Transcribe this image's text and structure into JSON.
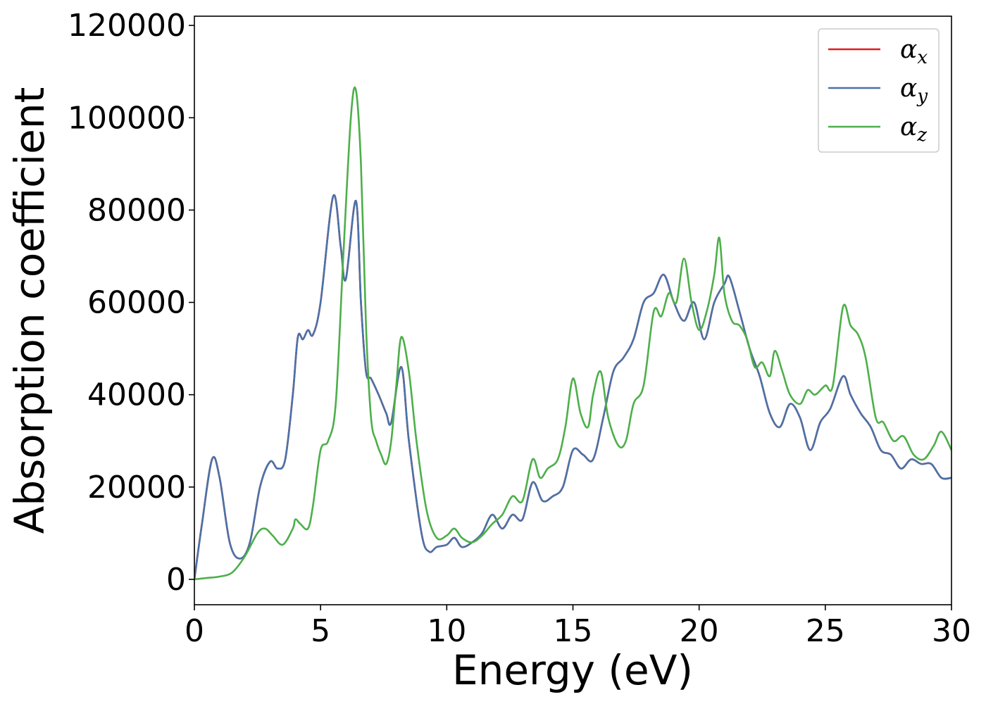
{
  "chart_data": {
    "type": "line",
    "xlabel": "Energy (eV)",
    "ylabel": "Absorption coefficient",
    "xlim": [
      0,
      30
    ],
    "ylim": [
      -5500,
      122000
    ],
    "xticks": [
      0,
      5,
      10,
      15,
      20,
      25,
      30
    ],
    "xtick_labels": [
      "0",
      "5",
      "10",
      "15",
      "20",
      "25",
      "30"
    ],
    "yticks": [
      0,
      20000,
      40000,
      60000,
      80000,
      100000,
      120000
    ],
    "ytick_labels": [
      "0",
      "20000",
      "40000",
      "60000",
      "80000",
      "100000",
      "120000"
    ],
    "grid": false,
    "legend_position": "top-right",
    "series": [
      {
        "name": "α_x",
        "symbol": "α",
        "subscript": "x",
        "color": "#e41a1c",
        "x": [
          0,
          0.3,
          0.7,
          1.0,
          1.4,
          1.8,
          2.2,
          2.6,
          3.0,
          3.3,
          3.6,
          3.9,
          4.1,
          4.3,
          4.5,
          4.7,
          5.0,
          5.5,
          5.8,
          6.0,
          6.4,
          6.6,
          6.8,
          7.0,
          7.3,
          7.6,
          7.8,
          8.2,
          8.5,
          9.0,
          9.3,
          9.6,
          10.0,
          10.3,
          10.6,
          11.0,
          11.4,
          11.8,
          12.2,
          12.6,
          13.0,
          13.4,
          13.8,
          14.2,
          14.6,
          15.0,
          15.4,
          15.8,
          16.2,
          16.6,
          17.0,
          17.4,
          17.8,
          18.2,
          18.6,
          19.0,
          19.4,
          19.8,
          20.2,
          20.6,
          21.0,
          21.2,
          21.6,
          22.0,
          22.4,
          22.8,
          23.2,
          23.6,
          24.0,
          24.4,
          24.8,
          25.2,
          25.7,
          26.0,
          26.4,
          26.8,
          27.2,
          27.6,
          28.0,
          28.4,
          28.8,
          29.2,
          29.6,
          30.0
        ],
        "y": [
          0,
          12000,
          26000,
          22000,
          8000,
          4500,
          8000,
          20000,
          25500,
          24000,
          26000,
          40000,
          52500,
          52000,
          54000,
          53000,
          60000,
          83000,
          72000,
          65000,
          82000,
          60000,
          45000,
          43500,
          40000,
          36000,
          34000,
          46000,
          30000,
          10000,
          6000,
          7000,
          7500,
          9000,
          7000,
          8000,
          10000,
          14000,
          11000,
          14000,
          13000,
          21000,
          17000,
          18000,
          20000,
          28000,
          27000,
          26000,
          35000,
          45000,
          48000,
          52000,
          60000,
          62000,
          66000,
          60000,
          56000,
          60000,
          52000,
          60000,
          64000,
          65500,
          58000,
          50000,
          44000,
          36000,
          33000,
          38000,
          35000,
          28000,
          34000,
          37000,
          44000,
          40000,
          36000,
          33000,
          28000,
          27000,
          24000,
          26000,
          25000,
          25000,
          22000,
          22000
        ],
        "note": ""
      },
      {
        "name": "α_y",
        "symbol": "α",
        "subscript": "y",
        "color": "#4a72a8",
        "x": [
          0,
          0.3,
          0.7,
          1.0,
          1.4,
          1.8,
          2.2,
          2.6,
          3.0,
          3.3,
          3.6,
          3.9,
          4.1,
          4.3,
          4.5,
          4.7,
          5.0,
          5.5,
          5.8,
          6.0,
          6.4,
          6.6,
          6.8,
          7.0,
          7.3,
          7.6,
          7.8,
          8.2,
          8.5,
          9.0,
          9.3,
          9.6,
          10.0,
          10.3,
          10.6,
          11.0,
          11.4,
          11.8,
          12.2,
          12.6,
          13.0,
          13.4,
          13.8,
          14.2,
          14.6,
          15.0,
          15.4,
          15.8,
          16.2,
          16.6,
          17.0,
          17.4,
          17.8,
          18.2,
          18.6,
          19.0,
          19.4,
          19.8,
          20.2,
          20.6,
          21.0,
          21.2,
          21.6,
          22.0,
          22.4,
          22.8,
          23.2,
          23.6,
          24.0,
          24.4,
          24.8,
          25.2,
          25.7,
          26.0,
          26.4,
          26.8,
          27.2,
          27.6,
          28.0,
          28.4,
          28.8,
          29.2,
          29.6,
          30.0
        ],
        "y": [
          0,
          12000,
          26000,
          22000,
          8000,
          4500,
          8000,
          20000,
          25500,
          24000,
          26000,
          40000,
          52500,
          52000,
          54000,
          53000,
          60000,
          83000,
          72000,
          65000,
          82000,
          60000,
          45000,
          43500,
          40000,
          36000,
          34000,
          46000,
          30000,
          10000,
          6000,
          7000,
          7500,
          9000,
          7000,
          8000,
          10000,
          14000,
          11000,
          14000,
          13000,
          21000,
          17000,
          18000,
          20000,
          28000,
          27000,
          26000,
          35000,
          45000,
          48000,
          52000,
          60000,
          62000,
          66000,
          60000,
          56000,
          60000,
          52000,
          60000,
          64000,
          65500,
          58000,
          50000,
          44000,
          36000,
          33000,
          38000,
          35000,
          28000,
          34000,
          37000,
          44000,
          40000,
          36000,
          33000,
          28000,
          27000,
          24000,
          26000,
          25000,
          25000,
          22000,
          22000
        ]
      },
      {
        "name": "α_z",
        "symbol": "α",
        "subscript": "z",
        "color": "#4daf4a",
        "x": [
          0,
          0.5,
          1.0,
          1.5,
          2.0,
          2.5,
          2.8,
          3.1,
          3.5,
          3.9,
          4.0,
          4.2,
          4.5,
          4.7,
          5.0,
          5.3,
          5.6,
          5.9,
          6.2,
          6.4,
          6.6,
          6.8,
          7.0,
          7.2,
          7.4,
          7.6,
          7.8,
          8.0,
          8.2,
          8.5,
          8.8,
          9.2,
          9.6,
          10.0,
          10.3,
          10.6,
          11.0,
          11.4,
          11.8,
          12.2,
          12.6,
          13.0,
          13.4,
          13.7,
          14.0,
          14.4,
          14.7,
          15.0,
          15.3,
          15.6,
          15.8,
          16.1,
          16.4,
          16.8,
          17.1,
          17.4,
          17.8,
          18.2,
          18.5,
          18.8,
          19.1,
          19.4,
          19.7,
          20.0,
          20.3,
          20.6,
          20.8,
          21.0,
          21.3,
          21.6,
          21.9,
          22.2,
          22.5,
          22.8,
          23.0,
          23.3,
          23.6,
          24.0,
          24.3,
          24.6,
          25.0,
          25.3,
          25.7,
          26.0,
          26.3,
          26.6,
          27.0,
          27.3,
          27.7,
          28.1,
          28.5,
          28.9,
          29.3,
          29.6,
          30.0
        ],
        "y": [
          0,
          300,
          600,
          1500,
          5000,
          10000,
          11000,
          9500,
          7500,
          11000,
          13000,
          12000,
          11000,
          16000,
          28000,
          30000,
          38000,
          70000,
          100000,
          106000,
          90000,
          55000,
          35000,
          30000,
          27000,
          25000,
          30000,
          42000,
          52500,
          45000,
          30000,
          15000,
          9000,
          9500,
          11000,
          9000,
          8000,
          9500,
          12000,
          14000,
          18000,
          17000,
          26000,
          22000,
          24000,
          26000,
          33000,
          43500,
          36000,
          33000,
          40000,
          45000,
          35000,
          29000,
          30000,
          38000,
          42000,
          58000,
          57000,
          62000,
          60000,
          69500,
          60000,
          54000,
          58000,
          66000,
          74000,
          62000,
          56000,
          55000,
          52000,
          46000,
          47000,
          44000,
          49500,
          45000,
          40000,
          38000,
          41000,
          40000,
          42000,
          42000,
          59000,
          55000,
          53000,
          48000,
          35000,
          34000,
          30000,
          31000,
          27000,
          26000,
          29000,
          32000,
          28000
        ]
      }
    ]
  }
}
